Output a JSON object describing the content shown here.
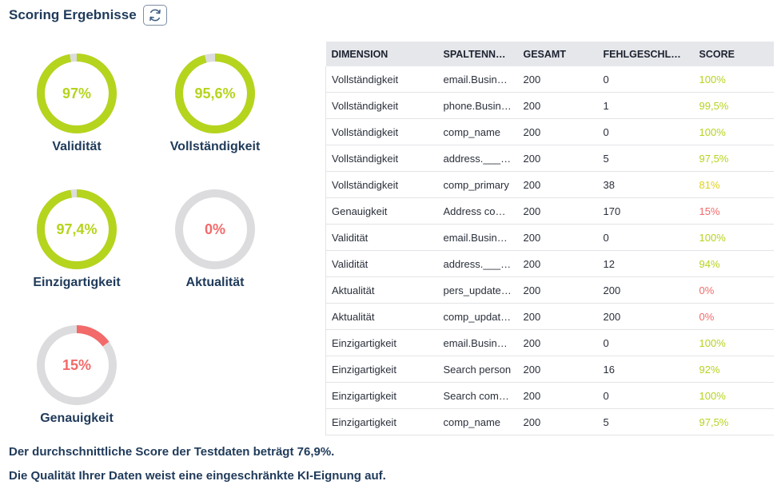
{
  "header": {
    "title": "Scoring Ergebnisse",
    "refresh_icon": "refresh-icon"
  },
  "colors": {
    "good": "#b5d41d",
    "warn": "#e0d21a",
    "bad": "#f26a6a",
    "track": "#dcdcde",
    "text": "#1f3a5a"
  },
  "gauges": [
    {
      "label": "Validität",
      "value_text": "97%",
      "value": 97,
      "status": "good"
    },
    {
      "label": "Vollständigkeit",
      "value_text": "95,6%",
      "value": 95.6,
      "status": "good"
    },
    {
      "label": "Einzigartigkeit",
      "value_text": "97,4%",
      "value": 97.4,
      "status": "good"
    },
    {
      "label": "Aktualität",
      "value_text": "0%",
      "value": 0,
      "status": "bad"
    },
    {
      "label": "Genauigkeit",
      "value_text": "15%",
      "value": 15,
      "status": "bad"
    }
  ],
  "table": {
    "headers": [
      "DIMENSION",
      "SPALTENNAME",
      "GESAMT",
      "FEHLGESCHLAGEN",
      "SCORE"
    ],
    "rows": [
      {
        "dimension": "Vollständigkeit",
        "column": "email.Business",
        "total": "200",
        "failed": "0",
        "score": "100%",
        "status": "good"
      },
      {
        "dimension": "Vollständigkeit",
        "column": "phone.Business",
        "total": "200",
        "failed": "1",
        "score": "99,5%",
        "status": "good"
      },
      {
        "dimension": "Vollständigkeit",
        "column": "comp_name",
        "total": "200",
        "failed": "0",
        "score": "100%",
        "status": "good"
      },
      {
        "dimension": "Vollständigkeit",
        "column": "address.___postal",
        "total": "200",
        "failed": "5",
        "score": "97,5%",
        "status": "good"
      },
      {
        "dimension": "Vollständigkeit",
        "column": "comp_primary",
        "total": "200",
        "failed": "38",
        "score": "81%",
        "status": "warn"
      },
      {
        "dimension": "Genauigkeit",
        "column": "Address company",
        "total": "200",
        "failed": "170",
        "score": "15%",
        "status": "bad"
      },
      {
        "dimension": "Validität",
        "column": "email.Business",
        "total": "200",
        "failed": "0",
        "score": "100%",
        "status": "good"
      },
      {
        "dimension": "Validität",
        "column": "address.___postal",
        "total": "200",
        "failed": "12",
        "score": "94%",
        "status": "good"
      },
      {
        "dimension": "Aktualität",
        "column": "pers_updated_at",
        "total": "200",
        "failed": "200",
        "score": "0%",
        "status": "bad"
      },
      {
        "dimension": "Aktualität",
        "column": "comp_updated_at",
        "total": "200",
        "failed": "200",
        "score": "0%",
        "status": "bad"
      },
      {
        "dimension": "Einzigartigkeit",
        "column": "email.Business",
        "total": "200",
        "failed": "0",
        "score": "100%",
        "status": "good"
      },
      {
        "dimension": "Einzigartigkeit",
        "column": "Search person",
        "total": "200",
        "failed": "16",
        "score": "92%",
        "status": "good"
      },
      {
        "dimension": "Einzigartigkeit",
        "column": "Search company",
        "total": "200",
        "failed": "0",
        "score": "100%",
        "status": "good"
      },
      {
        "dimension": "Einzigartigkeit",
        "column": "comp_name",
        "total": "200",
        "failed": "5",
        "score": "97,5%",
        "status": "good"
      }
    ]
  },
  "summary": {
    "line1": "Der durchschnittliche Score der Testdaten beträgt 76,9%.",
    "line2": "Die Qualität Ihrer Daten weist eine eingeschränkte KI-Eignung auf."
  }
}
